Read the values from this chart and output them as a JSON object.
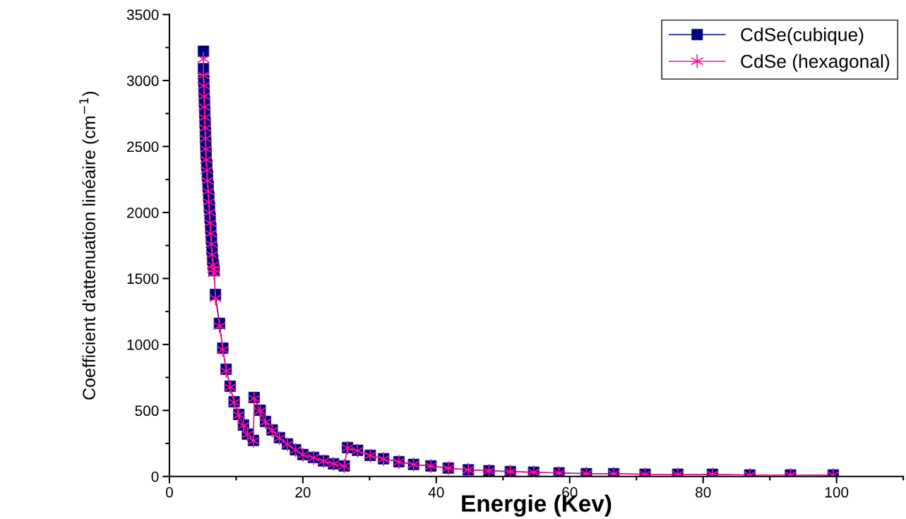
{
  "chart_data": {
    "type": "line",
    "xlabel": "Energie (Kev)",
    "ylabel": "Coefficient d'attenuation linéaire (cm$^{−1}$)",
    "xlim": [
      0,
      110
    ],
    "xticks": [
      0,
      20,
      40,
      60,
      80,
      100
    ],
    "ylim": [
      0,
      3500
    ],
    "yticks": [
      0,
      500,
      1000,
      1500,
      2000,
      2500,
      3000,
      3500
    ],
    "grid": false,
    "legend": "top right",
    "line_style": "solid",
    "series": [
      {
        "name": "CdSe(cubique)",
        "color": "#000080",
        "marker": "square",
        "x": [
          5.1,
          5.1,
          5.15,
          5.2,
          5.25,
          5.3,
          5.35,
          5.4,
          5.45,
          5.5,
          5.6,
          5.7,
          5.8,
          5.9,
          6.0,
          6.1,
          6.2,
          6.3,
          6.4,
          6.5,
          6.6,
          6.7,
          6.9,
          7.5,
          8.0,
          8.5,
          9.1,
          9.7,
          10.4,
          11.1,
          11.7,
          12.6,
          12.7,
          13.6,
          14.4,
          15.4,
          16.5,
          17.7,
          18.9,
          20.0,
          21.6,
          23.1,
          24.6,
          26.2,
          26.7,
          28.2,
          30.1,
          32.1,
          34.4,
          36.6,
          39.2,
          41.8,
          44.8,
          47.9,
          51.1,
          54.6,
          58.4,
          62.5,
          66.6,
          71.3,
          76.2,
          81.4,
          87.0,
          93.1,
          99.5
        ],
        "values": [
          3222,
          3089,
          3000,
          2920,
          2840,
          2760,
          2680,
          2600,
          2520,
          2440,
          2360,
          2280,
          2200,
          2120,
          2040,
          1960,
          1880,
          1800,
          1720,
          1640,
          1600,
          1560,
          1379,
          1160,
          972,
          812,
          684,
          566,
          470,
          390,
          321,
          273,
          598,
          502,
          417,
          352,
          294,
          246,
          203,
          166,
          144,
          118,
          96,
          80,
          219,
          198,
          160,
          134,
          112,
          91,
          80,
          64,
          50,
          43,
          37,
          32,
          27,
          21,
          21,
          16,
          16,
          16,
          11,
          11,
          11
        ]
      },
      {
        "name": "CdSe (hexagonal)",
        "color": "#ff1493",
        "marker": "cross",
        "x": [
          5.1,
          5.1,
          5.15,
          5.2,
          5.25,
          5.3,
          5.35,
          5.4,
          5.45,
          5.5,
          5.6,
          5.7,
          5.8,
          5.9,
          6.0,
          6.1,
          6.2,
          6.3,
          6.4,
          6.5,
          6.6,
          6.7,
          6.9,
          7.5,
          8.0,
          8.5,
          9.1,
          9.7,
          10.4,
          11.1,
          11.7,
          12.6,
          12.7,
          13.6,
          14.4,
          15.4,
          16.5,
          17.7,
          18.9,
          20.0,
          21.6,
          23.1,
          24.6,
          26.2,
          26.7,
          28.2,
          30.1,
          32.1,
          34.4,
          36.6,
          39.2,
          41.8,
          44.8,
          47.9,
          51.1,
          54.6,
          58.4,
          62.5,
          66.6,
          71.3,
          76.2,
          81.4,
          87.0,
          93.1,
          99.5
        ],
        "values": [
          3163,
          3040,
          2960,
          2880,
          2800,
          2720,
          2640,
          2560,
          2480,
          2400,
          2320,
          2240,
          2160,
          2080,
          2000,
          1920,
          1840,
          1760,
          1680,
          1600,
          1570,
          1540,
          1350,
          1140,
          960,
          800,
          675,
          560,
          465,
          385,
          318,
          270,
          590,
          495,
          412,
          348,
          290,
          243,
          200,
          164,
          142,
          116,
          95,
          79,
          216,
          195,
          158,
          132,
          110,
          90,
          79,
          63,
          49,
          42,
          36,
          31,
          26,
          21,
          20,
          16,
          16,
          15,
          11,
          11,
          10
        ]
      }
    ]
  }
}
